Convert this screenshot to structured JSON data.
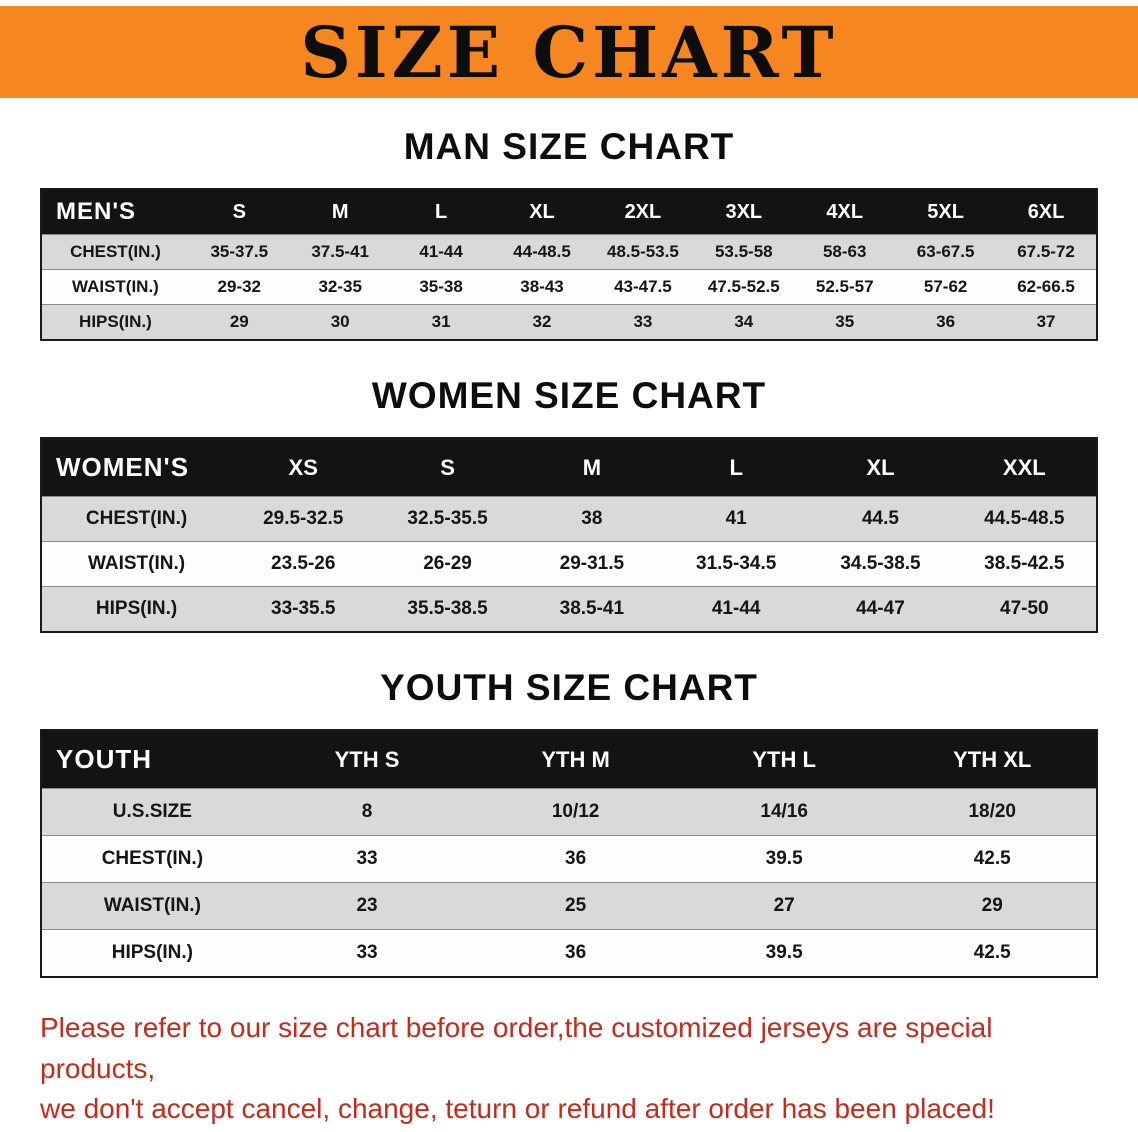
{
  "banner": {
    "title": "SIZE CHART",
    "bg_color": "#f6861f",
    "text_color": "#0d0d0d"
  },
  "sections": [
    {
      "id": "men",
      "heading": "MAN SIZE CHART",
      "table": {
        "label": "MEN'S",
        "columns": [
          "S",
          "M",
          "L",
          "XL",
          "2XL",
          "3XL",
          "4XL",
          "5XL",
          "6XL"
        ],
        "rows": [
          {
            "label": "CHEST(IN.)",
            "values": [
              "35-37.5",
              "37.5-41",
              "41-44",
              "44-48.5",
              "48.5-53.5",
              "53.5-58",
              "58-63",
              "63-67.5",
              "67.5-72"
            ]
          },
          {
            "label": "WAIST(IN.)",
            "values": [
              "29-32",
              "32-35",
              "35-38",
              "38-43",
              "43-47.5",
              "47.5-52.5",
              "52.5-57",
              "57-62",
              "62-66.5"
            ]
          },
          {
            "label": "HIPS(IN.)",
            "values": [
              "29",
              "30",
              "31",
              "32",
              "33",
              "34",
              "35",
              "36",
              "37"
            ]
          }
        ]
      }
    },
    {
      "id": "women",
      "heading": "WOMEN SIZE CHART",
      "table": {
        "label": "WOMEN'S",
        "columns": [
          "XS",
          "S",
          "M",
          "L",
          "XL",
          "XXL"
        ],
        "rows": [
          {
            "label": "CHEST(IN.)",
            "values": [
              "29.5-32.5",
              "32.5-35.5",
              "38",
              "41",
              "44.5",
              "44.5-48.5"
            ]
          },
          {
            "label": "WAIST(IN.)",
            "values": [
              "23.5-26",
              "26-29",
              "29-31.5",
              "31.5-34.5",
              "34.5-38.5",
              "38.5-42.5"
            ]
          },
          {
            "label": "HIPS(IN.)",
            "values": [
              "33-35.5",
              "35.5-38.5",
              "38.5-41",
              "41-44",
              "44-47",
              "47-50"
            ]
          }
        ]
      }
    },
    {
      "id": "youth",
      "heading": "YOUTH SIZE CHART",
      "table": {
        "label": "YOUTH",
        "columns": [
          "YTH S",
          "YTH M",
          "YTH L",
          "YTH XL"
        ],
        "rows": [
          {
            "label": "U.S.SIZE",
            "values": [
              "8",
              "10/12",
              "14/16",
              "18/20"
            ]
          },
          {
            "label": "CHEST(IN.)",
            "values": [
              "33",
              "36",
              "39.5",
              "42.5"
            ]
          },
          {
            "label": "WAIST(IN.)",
            "values": [
              "23",
              "25",
              "27",
              "29"
            ]
          },
          {
            "label": "HIPS(IN.)",
            "values": [
              "33",
              "36",
              "39.5",
              "42.5"
            ]
          }
        ]
      }
    }
  ],
  "footer": {
    "line1": "Please refer to our size chart before order,the customized jerseys are special products,",
    "line2": "we don't accept cancel, change, teturn or refund after order has been placed!",
    "text_color": "#c02d1f"
  }
}
